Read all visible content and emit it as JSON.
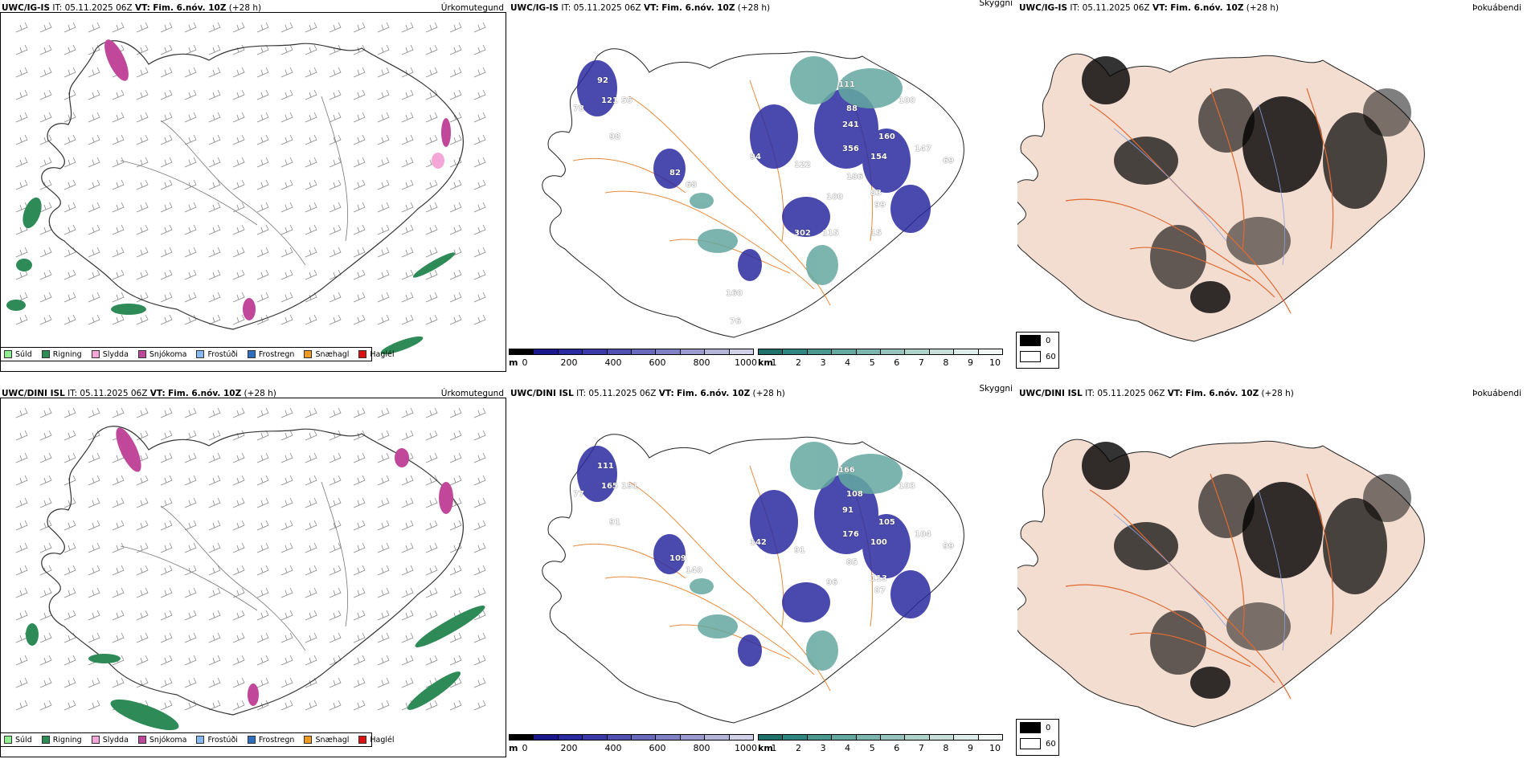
{
  "rows": [
    {
      "model": "UWC/IG-IS",
      "it_label": "IT:",
      "it_value": "05.11.2025 06Z",
      "vt_label": "VT:",
      "vt_value": "Fim. 6.nóv. 10Z",
      "lead": "(+28 h)",
      "precip_param": "Úrkomutegund",
      "cloud_param": "Skyggni",
      "fog_param": "Þokuábendi",
      "cloud_labels": [
        "92",
        "78",
        "121",
        "55",
        "98",
        "82",
        "68",
        "94",
        "122",
        "111",
        "88",
        "100",
        "241",
        "160",
        "356",
        "147",
        "154",
        "69",
        "186",
        "83",
        "99",
        "100",
        "302",
        "115",
        "15",
        "160",
        "76"
      ]
    },
    {
      "model": "UWC/DINI ISL",
      "it_label": "IT:",
      "it_value": "05.11.2025 06Z",
      "vt_label": "VT:",
      "vt_value": "Fim. 6.nóv. 10Z",
      "lead": "(+28 h)",
      "precip_param": "Úrkomutegund",
      "cloud_param": "Skyggni",
      "fog_param": "Þokuábendi",
      "cloud_labels": [
        "111",
        "77",
        "165",
        "191",
        "91",
        "109",
        "140",
        "142",
        "91",
        "166",
        "108",
        "103",
        "91",
        "105",
        "176",
        "104",
        "100",
        "99",
        "85",
        "113",
        "87",
        "96"
      ]
    }
  ],
  "precip_legend": [
    {
      "label": "Súld",
      "color": "#90ee90"
    },
    {
      "label": "Rigning",
      "color": "#2e8b57"
    },
    {
      "label": "Slydda",
      "color": "#f4a6d7"
    },
    {
      "label": "Snjókoma",
      "color": "#c0479a"
    },
    {
      "label": "Frostúði",
      "color": "#87b8f0"
    },
    {
      "label": "Frostregn",
      "color": "#2f6fc0"
    },
    {
      "label": "Snæhagl",
      "color": "#f09a20"
    },
    {
      "label": "Haglél",
      "color": "#e01010"
    }
  ],
  "height_bar": {
    "unit": "m",
    "ticks": [
      "0",
      "200",
      "400",
      "600",
      "800",
      "1000"
    ],
    "colors": [
      "#000000",
      "#1a1a8c",
      "#2a2aa0",
      "#3a3aa8",
      "#5050b0",
      "#6a6abc",
      "#8080c4",
      "#9a9ace",
      "#b4b4d8",
      "#d0d0e8"
    ]
  },
  "km_bar": {
    "unit": "km",
    "ticks": [
      "1",
      "2",
      "3",
      "4",
      "5",
      "6",
      "7",
      "8",
      "9",
      "10"
    ],
    "colors": [
      "#1f6f6a",
      "#2f8580",
      "#4a9890",
      "#64a8a0",
      "#7cb6ae",
      "#94c4bc",
      "#acd2ca",
      "#c4e0d8",
      "#dcece8",
      "#f2f8f6"
    ]
  },
  "fog_legend": [
    {
      "label": "0",
      "color": "#000000"
    },
    {
      "label": "60",
      "color": "#ffffff"
    }
  ]
}
